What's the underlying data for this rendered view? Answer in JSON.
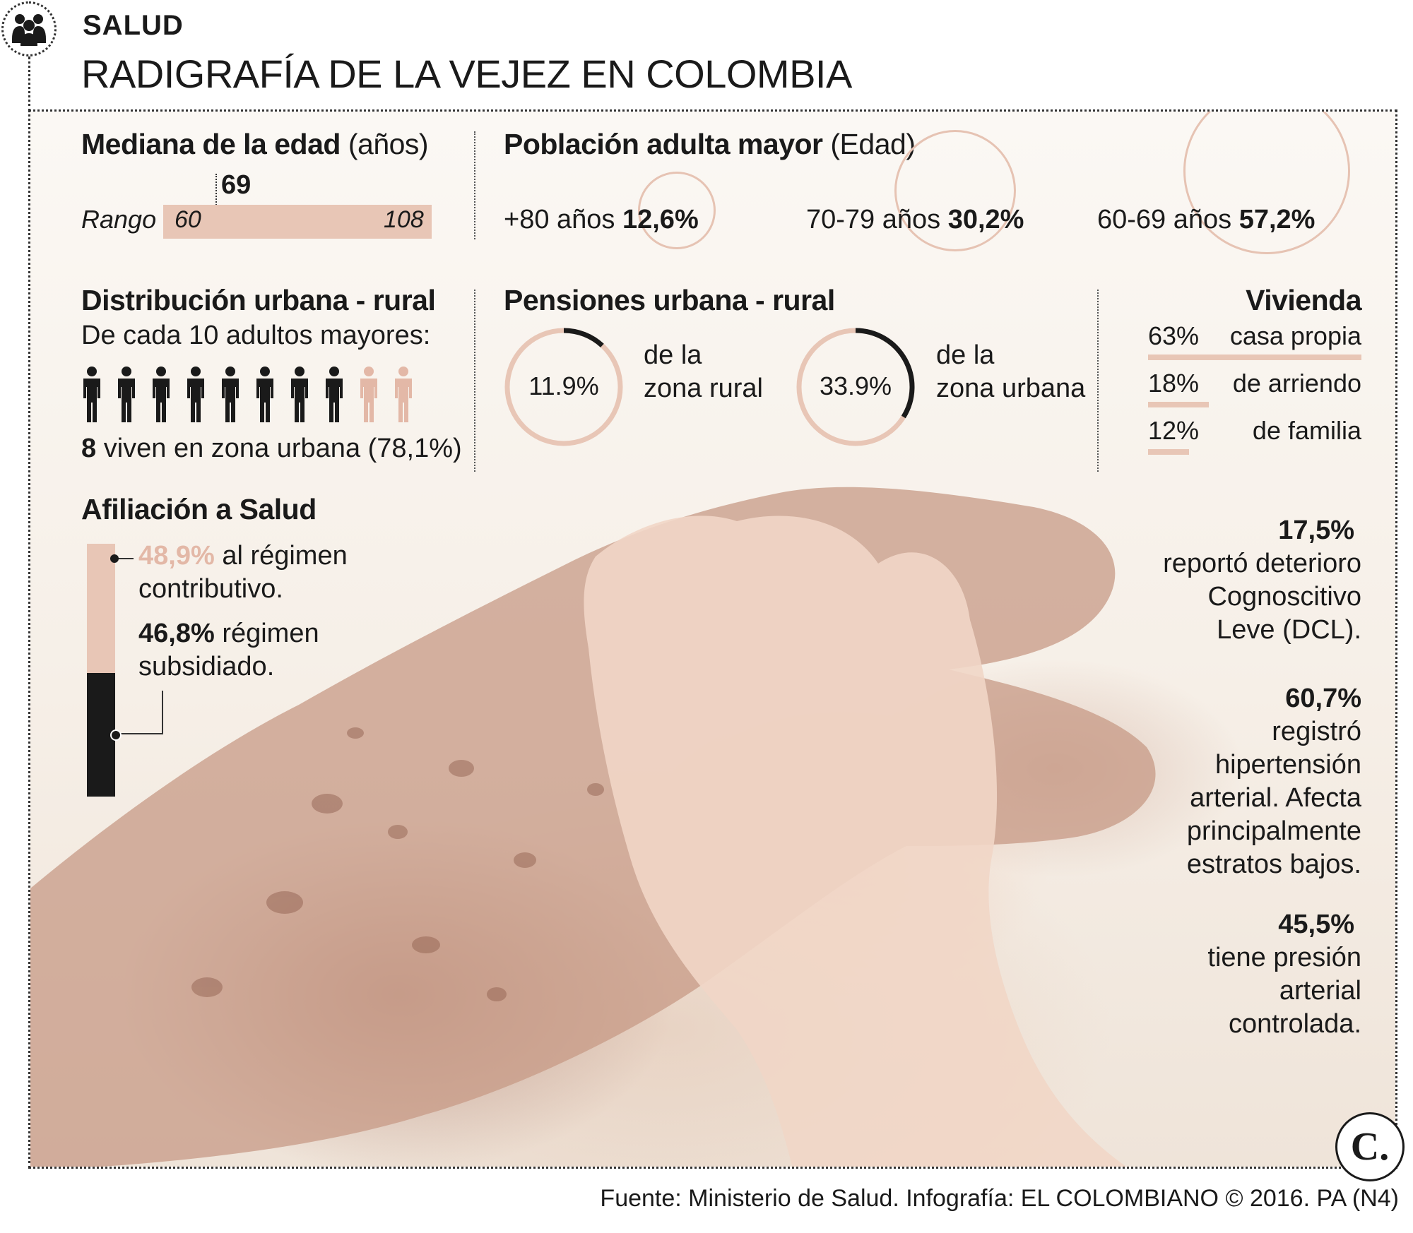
{
  "header": {
    "section": "SALUD",
    "title": "RADIGRAFÍA DE LA VEJEZ EN COLOMBIA"
  },
  "colors": {
    "accent_pink": "#e3b8a7",
    "dark": "#1a1a1a"
  },
  "mediana": {
    "title": "Mediana de la edad",
    "unit": "(años)",
    "median": "69",
    "range_label": "Rango",
    "min": "60",
    "max": "108"
  },
  "poblacion": {
    "title": "Población adulta mayor",
    "unit": "(Edad)",
    "groups": [
      {
        "label": "+80 años",
        "value": "12,6%"
      },
      {
        "label": "70-79 años",
        "value": "30,2%"
      },
      {
        "label": "60-69 años",
        "value": "57,2%"
      }
    ]
  },
  "distribucion": {
    "title": "Distribución urbana - rural",
    "subtitle": "De cada 10 adultos mayores:",
    "urban_count": 8,
    "total": 10,
    "caption_num": "8",
    "caption_text": "viven en zona urbana (78,1%)"
  },
  "pensiones": {
    "title": "Pensiones urbana - rural",
    "items": [
      {
        "value": "11.9%",
        "fraction": 0.119,
        "label1": "de la",
        "label2": "zona rural"
      },
      {
        "value": "33.9%",
        "fraction": 0.339,
        "label1": "de la",
        "label2": "zona urbana"
      }
    ]
  },
  "vivienda": {
    "title": "Vivienda",
    "items": [
      {
        "pct": "63%",
        "label": "casa propia",
        "fraction": 0.63
      },
      {
        "pct": "18%",
        "label": "de arriendo",
        "fraction": 0.18
      },
      {
        "pct": "12%",
        "label": "de familia",
        "fraction": 0.12
      }
    ]
  },
  "afiliacion": {
    "title": "Afiliación a Salud",
    "contributivo_pct": "48,9%",
    "contributivo_l1": "al régimen",
    "contributivo_l2": "contributivo.",
    "subsidiado_pct": "46,8%",
    "subsidiado_l1": "régimen",
    "subsidiado_l2": "subsidiado."
  },
  "stats": [
    {
      "value": "17,5%",
      "lines": [
        "reportó deterioro",
        "Cognoscitivo",
        "Leve (DCL)."
      ]
    },
    {
      "value": "60,7%",
      "lines": [
        "registró",
        "hipertensión",
        "arterial. Afecta",
        "principalmente",
        "estratos bajos."
      ]
    },
    {
      "value": "45,5%",
      "lines": [
        "tiene presión",
        "arterial",
        "controlada."
      ]
    }
  ],
  "footer": {
    "source": "Fuente: Ministerio de Salud. Infografía: EL COLOMBIANO © 2016. PA (N4)",
    "logo": "C."
  }
}
